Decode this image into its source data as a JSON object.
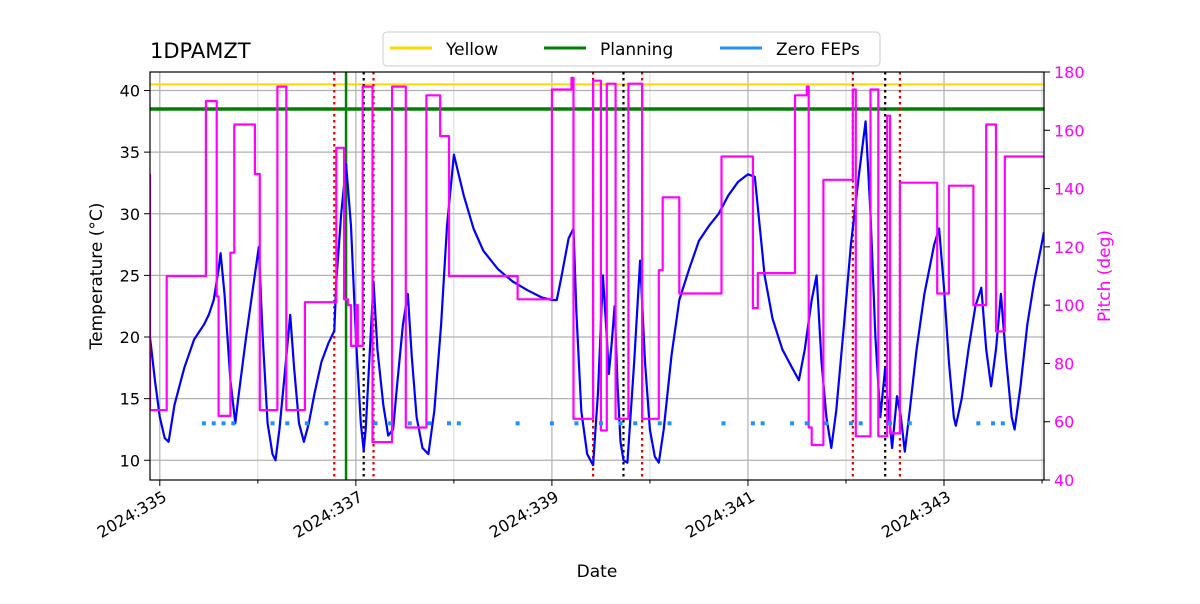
{
  "chart_data": {
    "type": "line",
    "title": "1DPAMZT",
    "xlabel": "Date",
    "ylabel": "Temperature ($^\\circ$C)",
    "ylabel_display": "Temperature (°C)",
    "y2label": "Pitch (deg)",
    "xlim": [
      334.9,
      344.02
    ],
    "ylim": [
      8.4,
      41.5
    ],
    "y2lim": [
      40,
      180
    ],
    "xticks": [
      335,
      337,
      339,
      341,
      343
    ],
    "xtick_labels": [
      "2024:335",
      "2024:337",
      "2024:339",
      "2024:341",
      "2024:343"
    ],
    "yticks": [
      10,
      15,
      20,
      25,
      30,
      35,
      40
    ],
    "y2ticks": [
      40,
      60,
      80,
      100,
      120,
      140,
      160,
      180
    ],
    "grid": true,
    "legend": {
      "placement": "top-center",
      "entries": [
        {
          "label": "Yellow",
          "color": "#ffd700"
        },
        {
          "label": "Planning",
          "color": "#008000"
        },
        {
          "label": "Zero FEPs",
          "color": "#1e90ff"
        }
      ]
    },
    "colors": {
      "temperature": "#0000ff",
      "pitch": "#ff00ff",
      "yellow": "#ffd700",
      "planning": "#008000",
      "zero_feps": "#1e90ff",
      "red_lines": "#dd0000",
      "black_lines": "#000000",
      "axis": "#000000",
      "grid": "#b0b0b0"
    },
    "hlines": [
      {
        "name": "Yellow",
        "y": 40.5
      },
      {
        "name": "Planning",
        "y": 38.5
      }
    ],
    "vline_planning": 336.9,
    "vlines_red": [
      336.78,
      337.18,
      339.42,
      339.92,
      342.07,
      342.55
    ],
    "vlines_black": [
      337.08,
      339.73,
      342.4
    ],
    "zero_feps": {
      "y": 13.0,
      "x": [
        335.45,
        335.55,
        335.65,
        335.75,
        336.15,
        336.3,
        336.5,
        336.7,
        337.2,
        337.35,
        337.55,
        337.75,
        337.95,
        338.05,
        338.65,
        339.0,
        339.25,
        339.5,
        339.7,
        339.85,
        340.1,
        340.2,
        340.75,
        341.05,
        341.15,
        341.45,
        341.6,
        341.8,
        342.05,
        342.15,
        342.45,
        342.65,
        343.35,
        343.5,
        343.6
      ]
    },
    "series": [
      {
        "key": "temperature",
        "axis": "left",
        "points": [
          [
            334.9,
            20.0
          ],
          [
            334.95,
            16.5
          ],
          [
            335.0,
            13.5
          ],
          [
            335.05,
            11.8
          ],
          [
            335.09,
            11.5
          ],
          [
            335.15,
            14.5
          ],
          [
            335.25,
            17.5
          ],
          [
            335.35,
            19.8
          ],
          [
            335.45,
            21.0
          ],
          [
            335.5,
            21.8
          ],
          [
            335.55,
            23.0
          ],
          [
            335.6,
            25.5
          ],
          [
            335.62,
            26.8
          ],
          [
            335.66,
            23.5
          ],
          [
            335.72,
            16.5
          ],
          [
            335.77,
            13.0
          ],
          [
            335.8,
            15.0
          ],
          [
            335.88,
            20.0
          ],
          [
            335.96,
            24.5
          ],
          [
            336.01,
            27.3
          ],
          [
            336.05,
            20.0
          ],
          [
            336.1,
            13.0
          ],
          [
            336.15,
            10.5
          ],
          [
            336.18,
            10.0
          ],
          [
            336.22,
            12.5
          ],
          [
            336.28,
            17.5
          ],
          [
            336.33,
            21.8
          ],
          [
            336.37,
            17.5
          ],
          [
            336.42,
            13.0
          ],
          [
            336.47,
            11.5
          ],
          [
            336.52,
            13.0
          ],
          [
            336.58,
            15.5
          ],
          [
            336.65,
            18.0
          ],
          [
            336.72,
            19.5
          ],
          [
            336.78,
            20.5
          ],
          [
            336.8,
            24.5
          ],
          [
            336.85,
            30.0
          ],
          [
            336.9,
            34.0
          ],
          [
            336.95,
            29.0
          ],
          [
            337.0,
            20.0
          ],
          [
            337.05,
            13.0
          ],
          [
            337.08,
            10.8
          ],
          [
            337.1,
            12.5
          ],
          [
            337.14,
            18.5
          ],
          [
            337.18,
            24.5
          ],
          [
            337.22,
            19.0
          ],
          [
            337.28,
            14.5
          ],
          [
            337.33,
            12.0
          ],
          [
            337.38,
            12.5
          ],
          [
            337.42,
            16.0
          ],
          [
            337.48,
            21.0
          ],
          [
            337.53,
            23.5
          ],
          [
            337.57,
            18.5
          ],
          [
            337.62,
            13.5
          ],
          [
            337.68,
            11.0
          ],
          [
            337.74,
            10.5
          ],
          [
            337.8,
            14.0
          ],
          [
            337.87,
            21.0
          ],
          [
            337.93,
            29.0
          ],
          [
            338.0,
            34.8
          ],
          [
            338.1,
            31.5
          ],
          [
            338.2,
            28.8
          ],
          [
            338.3,
            27.0
          ],
          [
            338.45,
            25.5
          ],
          [
            338.6,
            24.5
          ],
          [
            338.75,
            23.8
          ],
          [
            338.9,
            23.2
          ],
          [
            339.0,
            23.0
          ],
          [
            339.05,
            23.0
          ],
          [
            339.1,
            25.0
          ],
          [
            339.17,
            28.0
          ],
          [
            339.22,
            28.8
          ],
          [
            339.25,
            22.0
          ],
          [
            339.3,
            14.0
          ],
          [
            339.36,
            10.5
          ],
          [
            339.42,
            9.6
          ],
          [
            339.47,
            15.5
          ],
          [
            339.52,
            25.0
          ],
          [
            339.56,
            20.0
          ],
          [
            339.58,
            17.0
          ],
          [
            339.61,
            19.5
          ],
          [
            339.64,
            22.5
          ],
          [
            339.67,
            16.0
          ],
          [
            339.7,
            11.5
          ],
          [
            339.73,
            10.0
          ],
          [
            339.77,
            9.8
          ],
          [
            339.84,
            18.0
          ],
          [
            339.9,
            26.2
          ],
          [
            339.95,
            18.0
          ],
          [
            340.0,
            12.5
          ],
          [
            340.05,
            10.3
          ],
          [
            340.09,
            9.8
          ],
          [
            340.14,
            12.5
          ],
          [
            340.22,
            18.5
          ],
          [
            340.3,
            23.0
          ],
          [
            340.4,
            25.5
          ],
          [
            340.5,
            27.8
          ],
          [
            340.6,
            29.0
          ],
          [
            340.7,
            30.0
          ],
          [
            340.8,
            31.5
          ],
          [
            340.9,
            32.6
          ],
          [
            341.0,
            33.2
          ],
          [
            341.07,
            33.0
          ],
          [
            341.12,
            29.0
          ],
          [
            341.17,
            25.0
          ],
          [
            341.25,
            21.5
          ],
          [
            341.35,
            19.0
          ],
          [
            341.45,
            17.5
          ],
          [
            341.52,
            16.5
          ],
          [
            341.58,
            19.0
          ],
          [
            341.65,
            23.0
          ],
          [
            341.7,
            25.0
          ],
          [
            341.75,
            18.0
          ],
          [
            341.8,
            13.5
          ],
          [
            341.85,
            11.0
          ],
          [
            341.9,
            14.0
          ],
          [
            341.98,
            21.0
          ],
          [
            342.05,
            27.5
          ],
          [
            342.13,
            33.0
          ],
          [
            342.2,
            37.5
          ],
          [
            342.25,
            30.0
          ],
          [
            342.3,
            20.0
          ],
          [
            342.35,
            13.5
          ],
          [
            342.4,
            17.5
          ],
          [
            342.43,
            14.5
          ],
          [
            342.47,
            11.0
          ],
          [
            342.52,
            15.2
          ],
          [
            342.56,
            13.5
          ],
          [
            342.6,
            10.7
          ],
          [
            342.65,
            14.0
          ],
          [
            342.72,
            19.0
          ],
          [
            342.8,
            23.5
          ],
          [
            342.9,
            27.5
          ],
          [
            342.95,
            28.8
          ],
          [
            343.0,
            24.0
          ],
          [
            343.05,
            18.0
          ],
          [
            343.1,
            13.5
          ],
          [
            343.12,
            12.8
          ],
          [
            343.18,
            15.0
          ],
          [
            343.25,
            19.0
          ],
          [
            343.32,
            22.5
          ],
          [
            343.38,
            24.0
          ],
          [
            343.43,
            19.0
          ],
          [
            343.48,
            16.0
          ],
          [
            343.53,
            19.0
          ],
          [
            343.58,
            23.5
          ],
          [
            343.63,
            18.5
          ],
          [
            343.69,
            13.5
          ],
          [
            343.72,
            12.5
          ],
          [
            343.78,
            16.0
          ],
          [
            343.85,
            21.0
          ],
          [
            343.92,
            24.5
          ],
          [
            344.02,
            28.5
          ]
        ]
      },
      {
        "key": "pitch",
        "axis": "right",
        "points": [
          [
            334.9,
            145
          ],
          [
            334.9,
            64
          ],
          [
            335.07,
            64
          ],
          [
            335.07,
            110
          ],
          [
            335.47,
            110
          ],
          [
            335.47,
            170
          ],
          [
            335.58,
            170
          ],
          [
            335.58,
            103
          ],
          [
            335.6,
            103
          ],
          [
            335.6,
            62
          ],
          [
            335.72,
            62
          ],
          [
            335.72,
            118
          ],
          [
            335.76,
            118
          ],
          [
            335.76,
            162
          ],
          [
            335.97,
            162
          ],
          [
            335.97,
            145
          ],
          [
            336.02,
            145
          ],
          [
            336.02,
            64
          ],
          [
            336.2,
            64
          ],
          [
            336.2,
            175
          ],
          [
            336.29,
            175
          ],
          [
            336.29,
            64
          ],
          [
            336.48,
            64
          ],
          [
            336.48,
            101
          ],
          [
            336.8,
            101
          ],
          [
            336.8,
            154
          ],
          [
            336.88,
            154
          ],
          [
            336.88,
            102
          ],
          [
            336.92,
            102
          ],
          [
            336.92,
            100
          ],
          [
            336.95,
            100
          ],
          [
            336.95,
            86
          ],
          [
            337.0,
            86
          ],
          [
            337.0,
            100
          ],
          [
            337.02,
            100
          ],
          [
            337.02,
            86
          ],
          [
            337.07,
            86
          ],
          [
            337.07,
            175
          ],
          [
            337.17,
            175
          ],
          [
            337.17,
            53
          ],
          [
            337.37,
            53
          ],
          [
            337.37,
            175
          ],
          [
            337.51,
            175
          ],
          [
            337.51,
            58
          ],
          [
            337.72,
            58
          ],
          [
            337.72,
            172
          ],
          [
            337.86,
            172
          ],
          [
            337.86,
            158
          ],
          [
            337.95,
            158
          ],
          [
            337.95,
            110
          ],
          [
            338.65,
            110
          ],
          [
            338.65,
            102
          ],
          [
            339.0,
            102
          ],
          [
            339.0,
            174
          ],
          [
            339.2,
            174
          ],
          [
            339.2,
            178
          ],
          [
            339.22,
            178
          ],
          [
            339.22,
            61
          ],
          [
            339.42,
            61
          ],
          [
            339.42,
            177
          ],
          [
            339.5,
            177
          ],
          [
            339.5,
            57
          ],
          [
            339.56,
            57
          ],
          [
            339.56,
            176
          ],
          [
            339.65,
            176
          ],
          [
            339.65,
            61
          ],
          [
            339.78,
            61
          ],
          [
            339.78,
            176
          ],
          [
            339.92,
            176
          ],
          [
            339.92,
            61
          ],
          [
            340.09,
            61
          ],
          [
            340.09,
            112
          ],
          [
            340.13,
            112
          ],
          [
            340.13,
            137
          ],
          [
            340.3,
            137
          ],
          [
            340.3,
            104
          ],
          [
            340.73,
            104
          ],
          [
            340.73,
            151
          ],
          [
            341.05,
            151
          ],
          [
            341.05,
            99
          ],
          [
            341.1,
            99
          ],
          [
            341.1,
            111
          ],
          [
            341.48,
            111
          ],
          [
            341.48,
            172
          ],
          [
            341.6,
            172
          ],
          [
            341.6,
            175
          ],
          [
            341.62,
            175
          ],
          [
            341.62,
            58
          ],
          [
            341.65,
            58
          ],
          [
            341.65,
            52
          ],
          [
            341.77,
            52
          ],
          [
            341.77,
            143
          ],
          [
            342.07,
            143
          ],
          [
            342.07,
            174
          ],
          [
            342.1,
            174
          ],
          [
            342.1,
            55
          ],
          [
            342.25,
            55
          ],
          [
            342.25,
            174
          ],
          [
            342.33,
            174
          ],
          [
            342.33,
            55
          ],
          [
            342.42,
            55
          ],
          [
            342.42,
            165
          ],
          [
            342.45,
            165
          ],
          [
            342.45,
            56
          ],
          [
            342.55,
            56
          ],
          [
            342.55,
            142
          ],
          [
            342.93,
            142
          ],
          [
            342.93,
            104
          ],
          [
            343.05,
            104
          ],
          [
            343.05,
            141
          ],
          [
            343.3,
            141
          ],
          [
            343.3,
            100
          ],
          [
            343.43,
            100
          ],
          [
            343.43,
            162
          ],
          [
            343.53,
            162
          ],
          [
            343.53,
            91
          ],
          [
            343.62,
            91
          ],
          [
            343.62,
            151
          ],
          [
            344.02,
            151
          ]
        ]
      }
    ]
  }
}
